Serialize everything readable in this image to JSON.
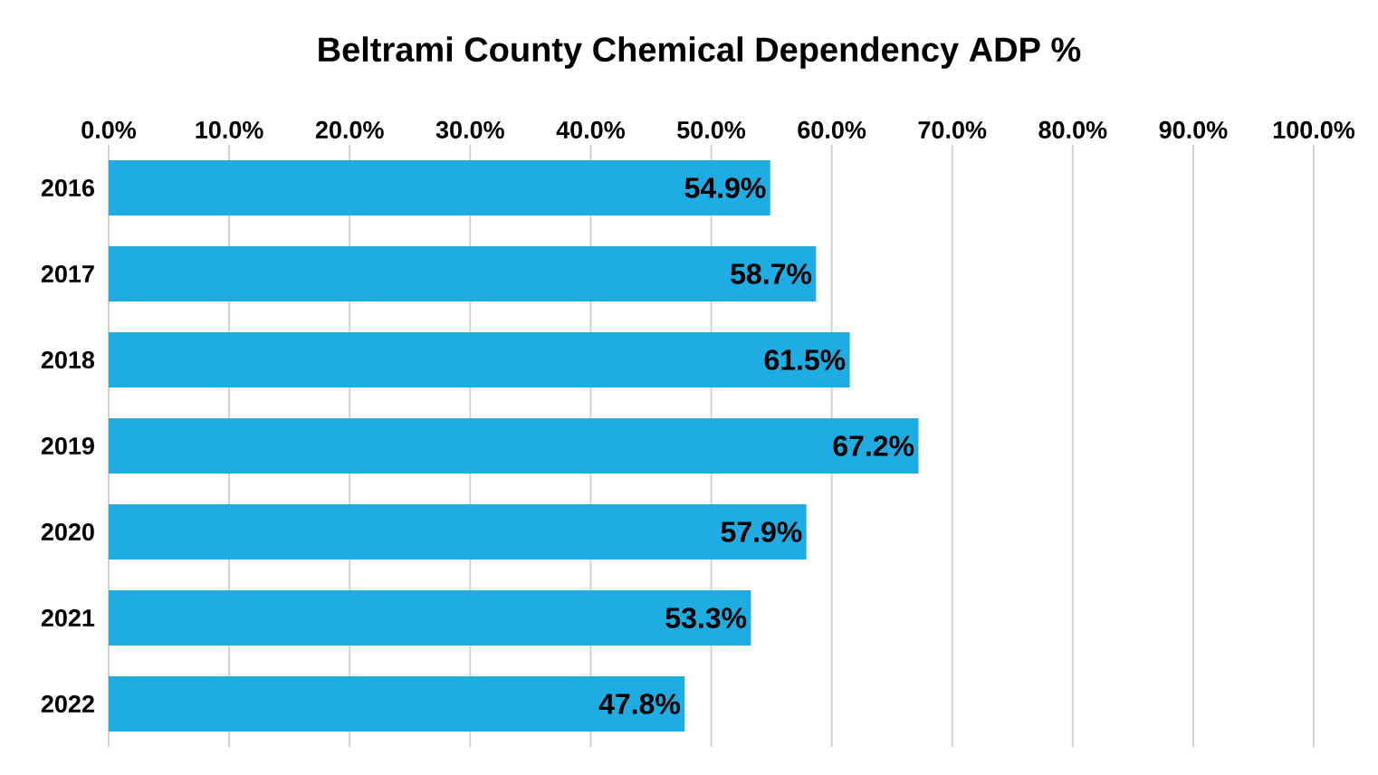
{
  "chart_data": {
    "type": "bar",
    "orientation": "horizontal",
    "title": "Beltrami County Chemical Dependency ADP %",
    "categories": [
      "2016",
      "2017",
      "2018",
      "2019",
      "2020",
      "2021",
      "2022"
    ],
    "values": [
      54.9,
      58.7,
      61.5,
      67.2,
      57.9,
      53.3,
      47.8
    ],
    "value_labels": [
      "54.9%",
      "58.7%",
      "61.5%",
      "67.2%",
      "57.9%",
      "53.3%",
      "47.8%"
    ],
    "color": "#1eace3",
    "xlim": [
      0,
      100
    ],
    "xticks": [
      {
        "value": 0,
        "label": "0.0%"
      },
      {
        "value": 10,
        "label": "10.0%"
      },
      {
        "value": 20,
        "label": "20.0%"
      },
      {
        "value": 30,
        "label": "30.0%"
      },
      {
        "value": 40,
        "label": "40.0%"
      },
      {
        "value": 50,
        "label": "50.0%"
      },
      {
        "value": 60,
        "label": "60.0%"
      },
      {
        "value": 70,
        "label": "70.0%"
      },
      {
        "value": 80,
        "label": "80.0%"
      },
      {
        "value": 90,
        "label": "90.0%"
      },
      {
        "value": 100,
        "label": "100.0%"
      }
    ],
    "grid": "x"
  }
}
